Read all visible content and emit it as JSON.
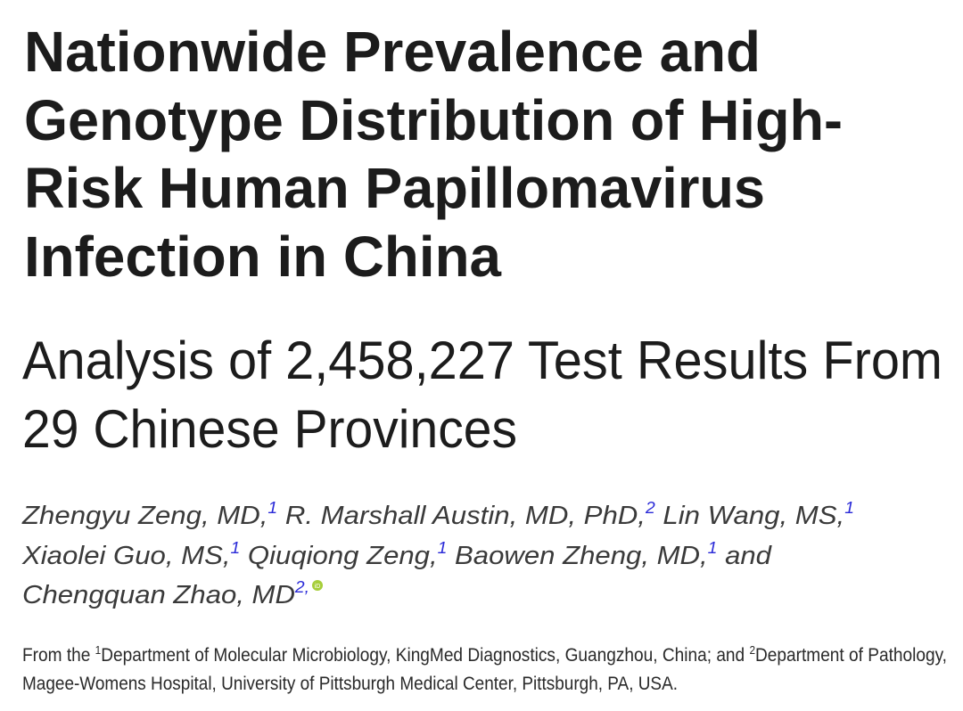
{
  "header": {
    "title_lines": [
      "Nationwide Prevalence and",
      "Genotype Distribution of High-",
      "Risk Human Papillomavirus",
      "Infection in China"
    ],
    "subtitle_lines": [
      "Analysis of 2,458,227 Test Results From",
      "29 Chinese Provinces"
    ]
  },
  "authors": {
    "list": [
      {
        "name": "Zhengyu Zeng, MD,",
        "sup": "1"
      },
      {
        "name": "R. Marshall Austin, MD, PhD,",
        "sup": "2"
      },
      {
        "name": "Lin Wang, MS,",
        "sup": "1"
      },
      {
        "name": "Xiaolei Guo, MS,",
        "sup": "1"
      },
      {
        "name": "Qiuqiong Zeng,",
        "sup": "1"
      },
      {
        "name": "Baowen Zheng, MD,",
        "sup": "1"
      },
      {
        "name": "Chengquan Zhao, MD",
        "sup": "2,"
      }
    ],
    "conjunction": "and"
  },
  "affiliations": {
    "prefix": "From the",
    "items": [
      {
        "sup": "1",
        "text": "Department of Molecular Microbiology, KingMed Diagnostics, Guangzhou, China;"
      },
      {
        "sup": "2",
        "text": [
          "Department of Pathology,",
          "Magee-Womens Hospital, University of Pittsburgh Medical Center, Pittsburgh, PA, USA."
        ]
      }
    ],
    "conjunction": "and"
  }
}
